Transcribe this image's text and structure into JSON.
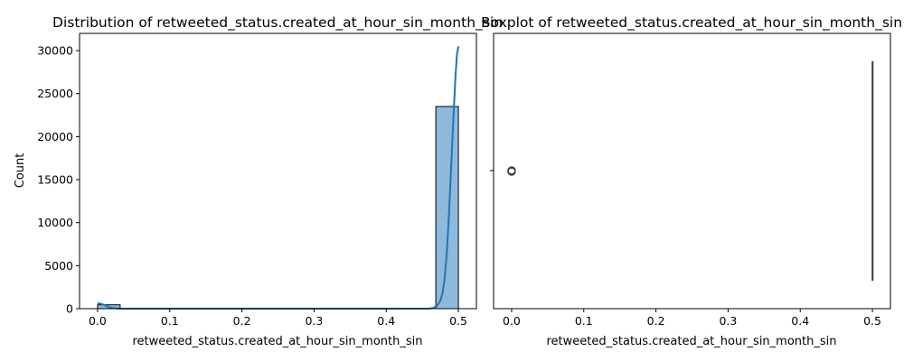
{
  "chart_data": [
    {
      "type": "bar",
      "subtype": "histogram-with-kde",
      "title": "Distribution of retweeted_status.created_at_hour_sin_month_sin",
      "xlabel": "retweeted_status.created_at_hour_sin_month_sin",
      "ylabel": "Count",
      "xlim": [
        -0.025,
        0.525
      ],
      "ylim": [
        0,
        32000
      ],
      "xticks": [
        0.0,
        0.1,
        0.2,
        0.3,
        0.4,
        0.5
      ],
      "xtick_labels": [
        "0.0",
        "0.1",
        "0.2",
        "0.3",
        "0.4",
        "0.5"
      ],
      "yticks": [
        0,
        5000,
        10000,
        15000,
        20000,
        25000,
        30000
      ],
      "ytick_labels": [
        "0",
        "5000",
        "10000",
        "15000",
        "20000",
        "25000",
        "30000"
      ],
      "bins": [
        {
          "x0": 0.0,
          "x1": 0.03125,
          "count": 450
        },
        {
          "x0": 0.46875,
          "x1": 0.5,
          "count": 23500
        }
      ],
      "kde": {
        "x": [
          0.0,
          0.005,
          0.01,
          0.015,
          0.02,
          0.03,
          0.05,
          0.1,
          0.2,
          0.3,
          0.4,
          0.46,
          0.465,
          0.47,
          0.475,
          0.478,
          0.481,
          0.484,
          0.487,
          0.49,
          0.493,
          0.496,
          0.498,
          0.5
        ],
        "y": [
          650,
          550,
          400,
          200,
          80,
          5,
          0,
          0,
          0,
          0,
          0,
          10,
          80,
          300,
          900,
          1800,
          3500,
          6500,
          11000,
          16500,
          22000,
          27000,
          29500,
          30500
        ]
      },
      "colors": {
        "bar_fill": "#8eb9dc",
        "bar_edge": "#000000",
        "kde_line": "#1f77b4"
      },
      "grid": false
    },
    {
      "type": "box",
      "title": "Boxplot of retweeted_status.created_at_hour_sin_month_sin",
      "xlabel": "retweeted_status.created_at_hour_sin_month_sin",
      "xlim": [
        -0.025,
        0.525
      ],
      "xticks": [
        0.0,
        0.1,
        0.2,
        0.3,
        0.4,
        0.5
      ],
      "xtick_labels": [
        "0.0",
        "0.1",
        "0.2",
        "0.3",
        "0.4",
        "0.5"
      ],
      "box": {
        "min": 0.5,
        "q1": 0.5,
        "median": 0.5,
        "q3": 0.5,
        "max": 0.5
      },
      "outliers": [
        0.0
      ],
      "colors": {
        "box_edge": "#3f3f3f",
        "outlier_edge": "#3f3f3f"
      },
      "grid": false
    }
  ]
}
